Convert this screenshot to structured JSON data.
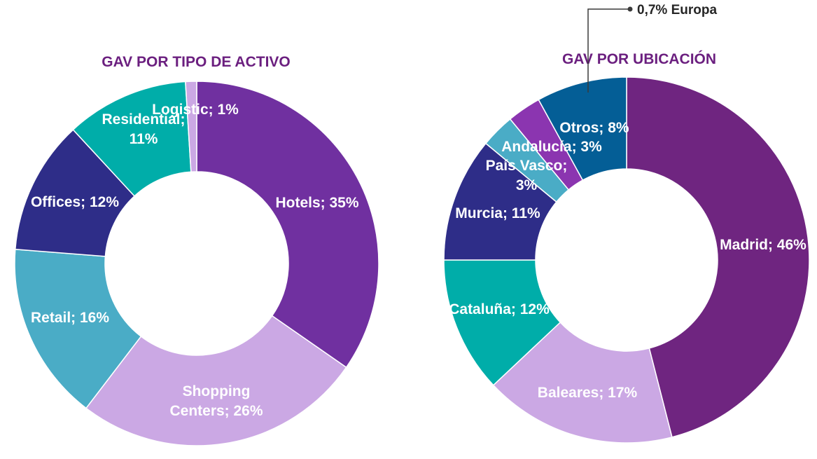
{
  "theme": {
    "title_color": "#6b1f7f",
    "label_color": "#ffffff",
    "annotation_color": "#262626"
  },
  "chart_data": [
    {
      "type": "pie",
      "variant": "donut",
      "title": "GAV POR TIPO DE ACTIVO",
      "slices": [
        {
          "name": "Hotels",
          "value": 35,
          "label": [
            "Hotels; 35%"
          ],
          "color": "#7030a0"
        },
        {
          "name": "Shopping Centers",
          "value": 26,
          "label": [
            "Shopping",
            "Centers; 26%"
          ],
          "color": "#cba8e4"
        },
        {
          "name": "Retail",
          "value": 16,
          "label": [
            "Retail; 16%"
          ],
          "color": "#4aacc6"
        },
        {
          "name": "Offices",
          "value": 12,
          "label": [
            "Offices; 12%"
          ],
          "color": "#2e2d88"
        },
        {
          "name": "Residential",
          "value": 11,
          "label": [
            "Residential;",
            "11%"
          ],
          "color": "#00ada9"
        },
        {
          "name": "Logistic",
          "value": 1,
          "label": [
            "Logistic; 1%"
          ],
          "color": "#cba8e4"
        }
      ]
    },
    {
      "type": "pie",
      "variant": "donut",
      "title": "GAV POR UBICACIÓN",
      "annotation": "0,7% Europa",
      "slices": [
        {
          "name": "Madrid",
          "value": 46,
          "label": [
            "Madrid; 46%"
          ],
          "color": "#6f2580"
        },
        {
          "name": "Baleares",
          "value": 17,
          "label": [
            "Baleares; 17%"
          ],
          "color": "#cba8e4"
        },
        {
          "name": "Cataluña",
          "value": 12,
          "label": [
            "Cataluña; 12%"
          ],
          "color": "#00ada9"
        },
        {
          "name": "Murcia",
          "value": 11,
          "label": [
            "Murcia; 11%"
          ],
          "color": "#2e2d88"
        },
        {
          "name": "País Vasco",
          "value": 3,
          "label": [
            "País Vasco;",
            "3%"
          ],
          "color": "#4aacc6"
        },
        {
          "name": "Andalucía",
          "value": 3,
          "label": [
            "Andalucía; 3%"
          ],
          "color": "#8b35b0"
        },
        {
          "name": "Otros",
          "value": 8,
          "label": [
            "Otros; 8%"
          ],
          "color": "#045e96"
        }
      ]
    }
  ]
}
